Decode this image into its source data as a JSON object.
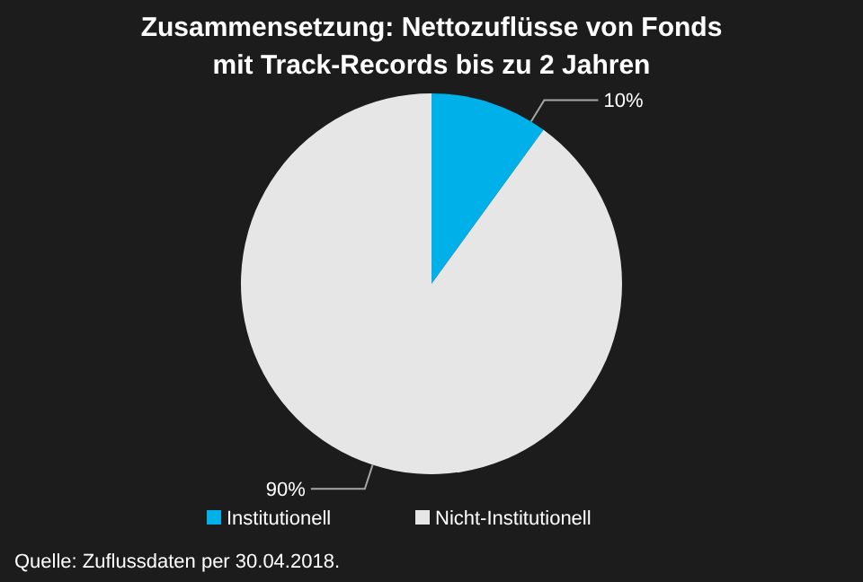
{
  "chart_data": {
    "type": "pie",
    "title": "Zusammensetzung: Nettozuflüsse von Fonds mit Track-Records bis zu 2  Jahren",
    "categories": [
      "Institutionell",
      "Nicht-Institutionell"
    ],
    "values": [
      10,
      90
    ],
    "colors": [
      "#00b0e8",
      "#e6e6e6"
    ],
    "value_labels": [
      "10%",
      "90%"
    ],
    "legend": "bottom",
    "annotations": [
      "Quelle: Zuflussdaten per 30.04.2018."
    ]
  }
}
